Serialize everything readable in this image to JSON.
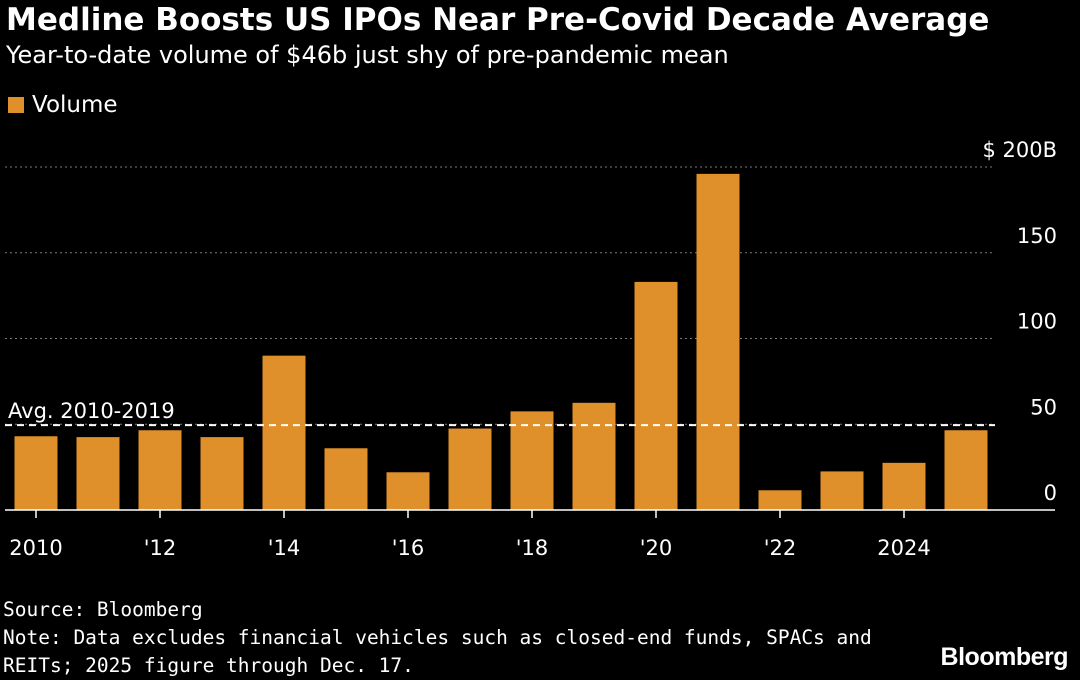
{
  "title": "Medline Boosts US IPOs Near Pre-Covid Decade Average",
  "subtitle": "Year-to-date volume of $46b just shy of pre-pandemic mean",
  "legend": {
    "label": "Volume",
    "color": "#e0902a"
  },
  "chart_data": {
    "type": "bar",
    "categories": [
      "2010",
      "2011",
      "2012",
      "2013",
      "2014",
      "2015",
      "2016",
      "2017",
      "2018",
      "2019",
      "2020",
      "2021",
      "2022",
      "2023",
      "2024",
      "2025"
    ],
    "x_tick_labels": [
      {
        "year": "2010",
        "label": "2010"
      },
      {
        "year": "2012",
        "label": "'12"
      },
      {
        "year": "2014",
        "label": "'14"
      },
      {
        "year": "2016",
        "label": "'16"
      },
      {
        "year": "2018",
        "label": "'18"
      },
      {
        "year": "2020",
        "label": "'20"
      },
      {
        "year": "2022",
        "label": "'22"
      },
      {
        "year": "2024",
        "label": "2024"
      }
    ],
    "series": [
      {
        "name": "Volume",
        "color": "#e0902a",
        "values": [
          43,
          42.5,
          46.5,
          42.5,
          90,
          36,
          22,
          47.5,
          57.5,
          62.5,
          133,
          196,
          11.5,
          22.5,
          27.5,
          46.5
        ]
      }
    ],
    "ylim": [
      0,
      200
    ],
    "y_ticks": [
      {
        "value": 0,
        "label": "0"
      },
      {
        "value": 50,
        "label": "50"
      },
      {
        "value": 100,
        "label": "100"
      },
      {
        "value": 150,
        "label": "150"
      },
      {
        "value": 200,
        "label": "$ 200B"
      }
    ],
    "reference_line": {
      "value": 49.5,
      "label": "Avg. 2010-2019"
    },
    "grid": true,
    "y_axis_position": "right",
    "legend_position": "top-left"
  },
  "footer": {
    "source": "Source: Bloomberg",
    "note_line1": "Note: Data excludes financial vehicles such as closed-end funds, SPACs and",
    "note_line2": "REITs; 2025 figure through Dec. 17."
  },
  "brand": "Bloomberg"
}
